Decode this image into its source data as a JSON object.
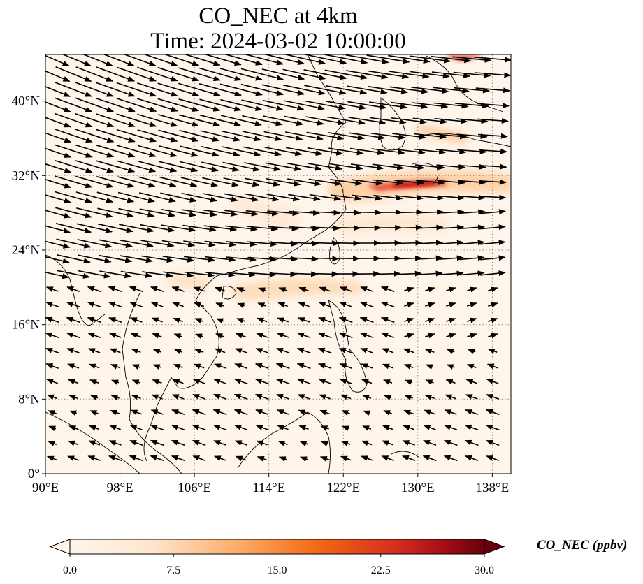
{
  "title_line1": "CO_NEC at 4km",
  "title_line2": "Time: 2024-03-02 10:00:00",
  "map": {
    "lon_range": [
      90,
      140
    ],
    "lat_range": [
      0,
      45
    ],
    "x_ticks": [
      {
        "value": 90,
        "label": "90°E"
      },
      {
        "value": 98,
        "label": "98°E"
      },
      {
        "value": 106,
        "label": "106°E"
      },
      {
        "value": 114,
        "label": "114°E"
      },
      {
        "value": 122,
        "label": "122°E"
      },
      {
        "value": 130,
        "label": "130°E"
      },
      {
        "value": 138,
        "label": "138°E"
      }
    ],
    "y_ticks": [
      {
        "value": 0,
        "label": "0°"
      },
      {
        "value": 8,
        "label": "8°N"
      },
      {
        "value": 16,
        "label": "16°N"
      },
      {
        "value": 24,
        "label": "24°N"
      },
      {
        "value": 32,
        "label": "32°N"
      },
      {
        "value": 40,
        "label": "40°N"
      }
    ],
    "gridlines": true,
    "colors": {
      "background": "#fff5eb",
      "coast": "#000000",
      "grid": "#888888",
      "arrow": "#000000"
    }
  },
  "colorbar": {
    "label": "CO_NEC (ppbv)",
    "min": 0.0,
    "max": 30.0,
    "ticks": [
      "0.0",
      "7.5",
      "15.0",
      "22.5",
      "30.0"
    ],
    "extend": "both",
    "colormap": "Oranges-Reds",
    "stops": [
      "#fff5eb",
      "#fdd49e",
      "#fdae6b",
      "#f16913",
      "#d94801",
      "#a50f15",
      "#67000d"
    ]
  }
}
